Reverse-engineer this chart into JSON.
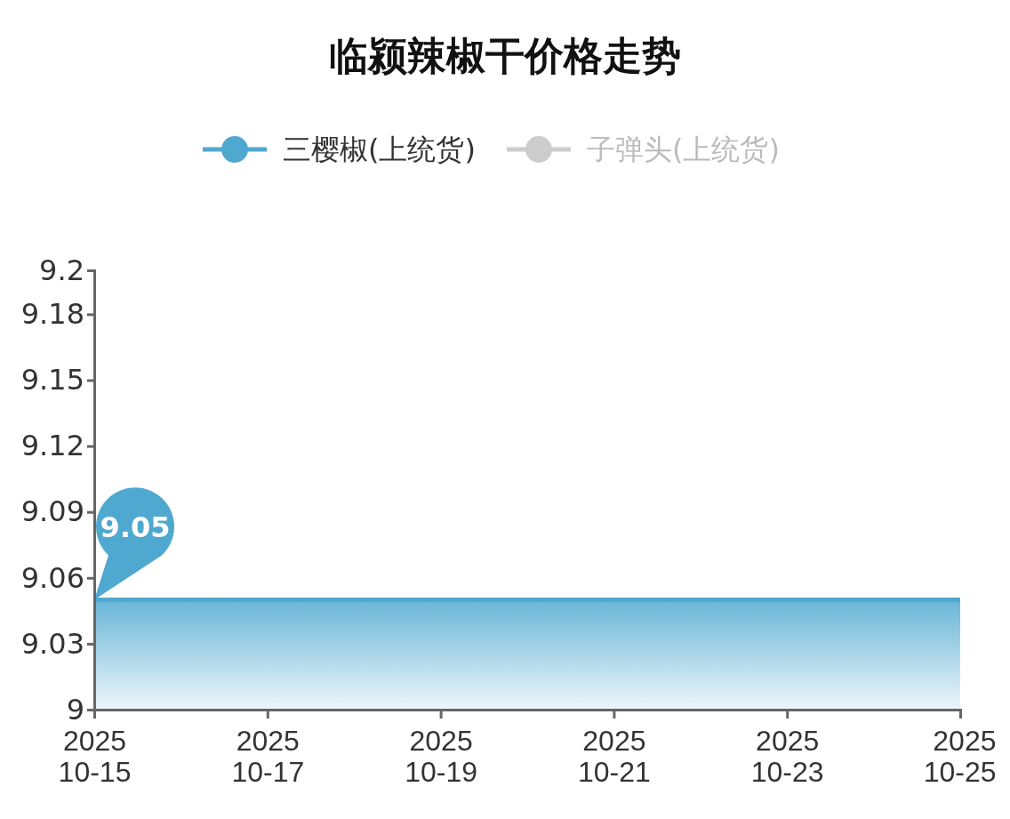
{
  "chart_data": {
    "type": "area",
    "title": "临颍辣椒干价格走势",
    "x": [
      "2025-10-15",
      "2025-10-16",
      "2025-10-17",
      "2025-10-18",
      "2025-10-19",
      "2025-10-20",
      "2025-10-21",
      "2025-10-22",
      "2025-10-23",
      "2025-10-24",
      "2025-10-25"
    ],
    "series": [
      {
        "name": "三樱椒(上统货)",
        "color": "#4fa8d0",
        "values": [
          9.05,
          9.05,
          9.05,
          9.05,
          9.05,
          9.05,
          9.05,
          9.05,
          9.05,
          9.05,
          9.05
        ],
        "value_labels": [
          "9.05",
          null,
          null,
          null,
          null,
          null,
          null,
          null,
          null,
          null,
          null
        ]
      },
      {
        "name": "子弹头(上统货)",
        "color": "#cccccc",
        "values": [
          null,
          null,
          null,
          null,
          null,
          null,
          null,
          null,
          null,
          null,
          null
        ]
      }
    ],
    "xlim": [
      "2025-10-15",
      "2025-10-25"
    ],
    "xticks": [
      {
        "value": "2025-10-15",
        "label": "2025\n10-15"
      },
      {
        "value": "2025-10-17",
        "label": "2025\n10-17"
      },
      {
        "value": "2025-10-19",
        "label": "2025\n10-19"
      },
      {
        "value": "2025-10-21",
        "label": "2025\n10-21"
      },
      {
        "value": "2025-10-23",
        "label": "2025\n10-23"
      },
      {
        "value": "2025-10-25",
        "label": "2025\n10-25"
      }
    ],
    "ylim": [
      9,
      9.2
    ],
    "yticks": [
      9,
      9.03,
      9.06,
      9.09,
      9.12,
      9.15,
      9.18,
      9.2
    ],
    "legend": "top",
    "grid": false
  }
}
